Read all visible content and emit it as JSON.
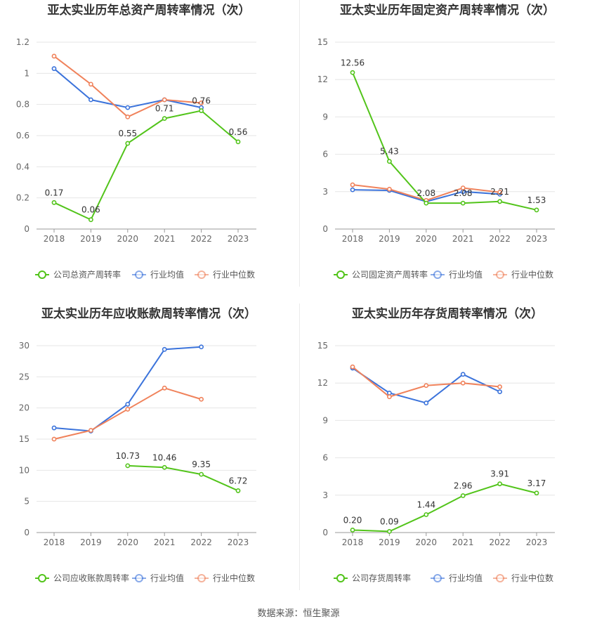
{
  "colors": {
    "company": "#52c41a",
    "avg": "#3b73db",
    "median": "#f0825b"
  },
  "footer": "数据来源：恒生聚源",
  "chart_data": [
    {
      "type": "line",
      "title": "亚太实业历年总资产周转率情况（次）",
      "categories": [
        "2018",
        "2019",
        "2020",
        "2021",
        "2022",
        "2023"
      ],
      "ylim": [
        0,
        1.2
      ],
      "yticks": [
        "0",
        "0.2",
        "0.4",
        "0.6",
        "0.8",
        "1",
        "1.2"
      ],
      "ytick_values": [
        0,
        0.2,
        0.4,
        0.6,
        0.8,
        1,
        1.2
      ],
      "grid": true,
      "legend_position": "bottom",
      "series": [
        {
          "name": "公司总资产周转率",
          "key": "company",
          "values": [
            0.17,
            0.06,
            0.55,
            0.71,
            0.76,
            0.56
          ],
          "labels": [
            "0.17",
            "0.06",
            "0.55",
            "0.71",
            "0.76",
            "0.56"
          ]
        },
        {
          "name": "行业均值",
          "key": "avg",
          "values": [
            1.03,
            0.83,
            0.78,
            0.83,
            0.78,
            null
          ]
        },
        {
          "name": "行业中位数",
          "key": "median",
          "values": [
            1.11,
            0.93,
            0.72,
            0.83,
            0.81,
            null
          ]
        }
      ]
    },
    {
      "type": "line",
      "title": "亚太实业历年固定资产周转率情况（次）",
      "categories": [
        "2018",
        "2019",
        "2020",
        "2021",
        "2022",
        "2023"
      ],
      "ylim": [
        0,
        15
      ],
      "yticks": [
        "0",
        "3",
        "6",
        "9",
        "12",
        "15"
      ],
      "ytick_values": [
        0,
        3,
        6,
        9,
        12,
        15
      ],
      "grid": true,
      "legend_position": "bottom",
      "series": [
        {
          "name": "公司固定资产周转率",
          "key": "company",
          "values": [
            12.56,
            5.43,
            2.08,
            2.08,
            2.21,
            1.53
          ],
          "labels": [
            "12.56",
            "5.43",
            "2.08",
            "2.08",
            "2.21",
            "1.53"
          ]
        },
        {
          "name": "行业均值",
          "key": "avg",
          "values": [
            3.15,
            3.1,
            2.2,
            3.0,
            2.8,
            null
          ]
        },
        {
          "name": "行业中位数",
          "key": "median",
          "values": [
            3.55,
            3.2,
            2.3,
            3.3,
            2.95,
            null
          ]
        }
      ]
    },
    {
      "type": "line",
      "title": "亚太实业历年应收账款周转率情况（次）",
      "categories": [
        "2018",
        "2019",
        "2020",
        "2021",
        "2022",
        "2023"
      ],
      "ylim": [
        0,
        30
      ],
      "yticks": [
        "0",
        "5",
        "10",
        "15",
        "20",
        "25",
        "30"
      ],
      "ytick_values": [
        0,
        5,
        10,
        15,
        20,
        25,
        30
      ],
      "grid": true,
      "legend_position": "bottom",
      "series": [
        {
          "name": "公司应收账款周转率",
          "key": "company",
          "values": [
            null,
            null,
            10.73,
            10.46,
            9.35,
            6.72
          ],
          "labels": [
            "",
            "",
            "10.73",
            "10.46",
            "9.35",
            "6.72"
          ]
        },
        {
          "name": "行业均值",
          "key": "avg",
          "values": [
            16.8,
            16.3,
            20.6,
            29.4,
            29.8,
            null
          ]
        },
        {
          "name": "行业中位数",
          "key": "median",
          "values": [
            15.0,
            16.4,
            19.8,
            23.2,
            21.4,
            null
          ]
        }
      ]
    },
    {
      "type": "line",
      "title": "亚太实业历年存货周转率情况（次）",
      "categories": [
        "2018",
        "2019",
        "2020",
        "2021",
        "2022",
        "2023"
      ],
      "ylim": [
        0,
        15
      ],
      "yticks": [
        "0",
        "3",
        "6",
        "9",
        "12",
        "15"
      ],
      "ytick_values": [
        0,
        3,
        6,
        9,
        12,
        15
      ],
      "grid": true,
      "legend_position": "bottom",
      "series": [
        {
          "name": "公司存货周转率",
          "key": "company",
          "values": [
            0.2,
            0.09,
            1.44,
            2.96,
            3.91,
            3.17
          ],
          "labels": [
            "0.20",
            "0.09",
            "1.44",
            "2.96",
            "3.91",
            "3.17"
          ]
        },
        {
          "name": "行业均值",
          "key": "avg",
          "values": [
            13.2,
            11.2,
            10.4,
            12.7,
            11.3,
            null
          ]
        },
        {
          "name": "行业中位数",
          "key": "median",
          "values": [
            13.3,
            10.9,
            11.8,
            12.0,
            11.7,
            null
          ]
        }
      ]
    }
  ]
}
